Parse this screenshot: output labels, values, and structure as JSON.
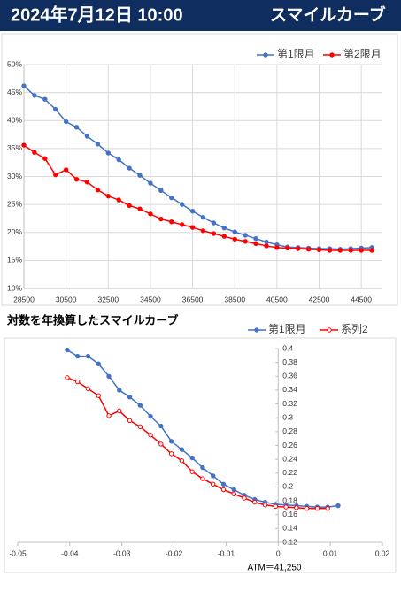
{
  "header": {
    "date": "2024年7月12日 10:00",
    "title": "スマイルカーブ"
  },
  "chart_data": [
    {
      "type": "line",
      "x": [
        28500,
        29000,
        29500,
        30000,
        30500,
        31000,
        31500,
        32000,
        32500,
        33000,
        33500,
        34000,
        34500,
        35000,
        35500,
        36000,
        36500,
        37000,
        37500,
        38000,
        38500,
        39000,
        39500,
        40000,
        40500,
        41000,
        41500,
        42000,
        42500,
        43000,
        43500,
        44000,
        44500,
        45000
      ],
      "series": [
        {
          "name": "第1限月",
          "color": "#4472c4",
          "values": [
            46.2,
            44.5,
            43.8,
            42,
            39.8,
            38.8,
            37.2,
            35.8,
            34.2,
            33,
            31.5,
            30.2,
            28.8,
            27.5,
            26.2,
            25,
            23.8,
            22.7,
            21.7,
            20.8,
            20.1,
            19.5,
            18.9,
            18.3,
            17.8,
            17.4,
            17.3,
            17.2,
            17.1,
            17.1,
            17.0,
            17.1,
            17.2,
            17.3
          ]
        },
        {
          "name": "第2限月",
          "color": "#ff0000",
          "values": [
            35.6,
            34.3,
            33.2,
            30.3,
            31.2,
            29.5,
            29,
            27.6,
            26.5,
            25.8,
            24.8,
            24.2,
            23.3,
            22.4,
            21.9,
            21.4,
            20.9,
            20.3,
            19.8,
            19.3,
            18.8,
            18.4,
            18.0,
            17.6,
            17.3,
            17.2,
            17.1,
            17.0,
            16.9,
            16.8,
            16.8,
            16.8,
            16.8,
            16.8
          ]
        }
      ],
      "xlim": [
        28500,
        45500
      ],
      "xticks": [
        28500,
        30500,
        32500,
        34500,
        36500,
        38500,
        40500,
        42500,
        44500
      ],
      "ylim": [
        10,
        50
      ],
      "yticks": [
        {
          "value": 10,
          "label": "10%"
        },
        {
          "value": 15,
          "label": "15%"
        },
        {
          "value": 20,
          "label": "20%"
        },
        {
          "value": 25,
          "label": "25%"
        },
        {
          "value": 30,
          "label": "30%"
        },
        {
          "value": 35,
          "label": "35%"
        },
        {
          "value": 40,
          "label": "40%"
        },
        {
          "value": 45,
          "label": "45%"
        },
        {
          "value": 50,
          "label": "50%"
        }
      ],
      "grid": true,
      "legend": "top-right"
    },
    {
      "type": "scatter-line",
      "title": "対数を年換算したスマイルカーブ",
      "annotation": "ATM＝41,250",
      "series": [
        {
          "name": "第1限月",
          "color": "#4472c4",
          "marker": "filled",
          "x": [
            -0.0405,
            -0.0385,
            -0.0365,
            -0.0345,
            -0.0325,
            -0.0305,
            -0.0285,
            -0.0265,
            -0.0245,
            -0.0225,
            -0.0205,
            -0.0185,
            -0.0165,
            -0.0145,
            -0.0125,
            -0.0105,
            -0.0085,
            -0.0065,
            -0.0045,
            -0.0025,
            -0.0005,
            0.0015,
            0.0035,
            0.0055,
            0.0075,
            0.0095,
            0.0115
          ],
          "values": [
            0.398,
            0.389,
            0.389,
            0.378,
            0.36,
            0.34,
            0.33,
            0.318,
            0.302,
            0.288,
            0.266,
            0.254,
            0.242,
            0.228,
            0.216,
            0.204,
            0.196,
            0.188,
            0.182,
            0.178,
            0.175,
            0.174,
            0.173,
            0.172,
            0.171,
            0.171,
            0.173
          ]
        },
        {
          "name": "系列2",
          "color": "#ff0000",
          "marker": "hollow",
          "x": [
            -0.0405,
            -0.0385,
            -0.0365,
            -0.0345,
            -0.0325,
            -0.0305,
            -0.0285,
            -0.0265,
            -0.0245,
            -0.0225,
            -0.0205,
            -0.0185,
            -0.0165,
            -0.0145,
            -0.0125,
            -0.0105,
            -0.0085,
            -0.0065,
            -0.0045,
            -0.0025,
            -0.0005,
            0.0015,
            0.0035,
            0.0055,
            0.0075,
            0.0095
          ],
          "values": [
            0.358,
            0.352,
            0.342,
            0.332,
            0.303,
            0.31,
            0.296,
            0.287,
            0.275,
            0.262,
            0.248,
            0.238,
            0.222,
            0.212,
            0.204,
            0.196,
            0.19,
            0.184,
            0.178,
            0.174,
            0.172,
            0.171,
            0.17,
            0.169,
            0.169,
            0.169
          ]
        }
      ],
      "xlim": [
        -0.05,
        0.02
      ],
      "xticks": [
        -0.05,
        -0.04,
        -0.03,
        -0.02,
        -0.01,
        0,
        0.01,
        0.02
      ],
      "ylim": [
        0.12,
        0.4
      ],
      "yticks": [
        0.12,
        0.14,
        0.16,
        0.18,
        0.2,
        0.22,
        0.24,
        0.26,
        0.28,
        0.3,
        0.32,
        0.34,
        0.36,
        0.38,
        0.4
      ],
      "y_axis_crosses_x": 0,
      "grid": false,
      "legend": "top-right"
    }
  ]
}
